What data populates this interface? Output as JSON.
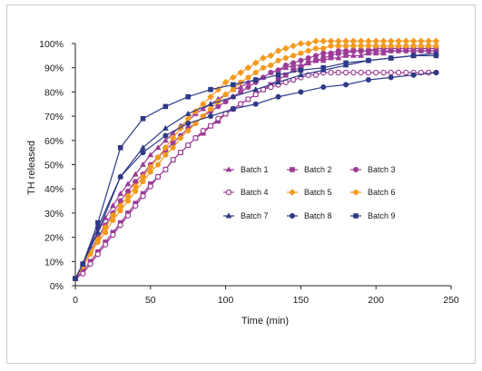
{
  "chart_data": {
    "type": "line",
    "title": "",
    "xlabel": "Time (min)",
    "ylabel": "TH released",
    "xlim": [
      0,
      250
    ],
    "ylim": [
      0,
      100
    ],
    "x_ticks": [
      "0",
      "50",
      "100",
      "150",
      "200",
      "250"
    ],
    "y_ticks": [
      "0%",
      "10%",
      "20%",
      "30%",
      "40%",
      "50%",
      "60%",
      "70%",
      "80%",
      "90%",
      "100%"
    ],
    "grid": false,
    "legend_position": "inside right",
    "series": [
      {
        "name": "Batch 1",
        "color": "#9b3c97",
        "marker": "triangle",
        "x": [
          0,
          5,
          10,
          15,
          20,
          25,
          30,
          35,
          40,
          45,
          50,
          55,
          60,
          65,
          70,
          75,
          80,
          85,
          90,
          95,
          100,
          105,
          110,
          115,
          120,
          125,
          130,
          135,
          140,
          145,
          150,
          155,
          160,
          165,
          170,
          175,
          180,
          185,
          190,
          195,
          200,
          205,
          210,
          215,
          220,
          225,
          230,
          235,
          240
        ],
        "y": [
          3,
          9,
          16,
          22,
          28,
          33,
          38,
          42,
          46,
          50,
          54,
          57,
          60,
          63,
          66,
          68,
          71,
          73,
          75,
          77,
          79,
          81,
          82,
          84,
          85,
          86,
          88,
          89,
          90,
          91,
          91,
          92,
          93,
          93,
          94,
          94,
          95,
          95,
          95,
          96,
          96,
          96,
          97,
          97,
          97,
          97,
          97,
          97,
          97
        ]
      },
      {
        "name": "Batch 2",
        "color": "#9b3c97",
        "marker": "square",
        "x": [
          0,
          5,
          10,
          15,
          20,
          25,
          30,
          35,
          40,
          45,
          50,
          55,
          60,
          65,
          70,
          75,
          80,
          85,
          90,
          95,
          100,
          105,
          110,
          115,
          120,
          125,
          130,
          135,
          140,
          145,
          150,
          155,
          160,
          165,
          170,
          175,
          180,
          185,
          190,
          195,
          200,
          205,
          210,
          215,
          220,
          225,
          230,
          235,
          240
        ],
        "y": [
          3,
          6,
          10,
          14,
          18,
          22,
          26,
          30,
          34,
          38,
          42,
          45,
          48,
          52,
          55,
          58,
          61,
          63,
          66,
          68,
          71,
          73,
          75,
          77,
          79,
          81,
          83,
          85,
          87,
          89,
          90,
          92,
          93,
          94,
          95,
          96,
          96,
          97,
          97,
          97,
          98,
          98,
          98,
          98,
          98,
          98,
          98,
          98,
          98
        ]
      },
      {
        "name": "Batch 3",
        "color": "#9b3c97",
        "marker": "circle",
        "x": [
          0,
          5,
          10,
          15,
          20,
          25,
          30,
          35,
          40,
          45,
          50,
          55,
          60,
          65,
          70,
          75,
          80,
          85,
          90,
          95,
          100,
          105,
          110,
          115,
          120,
          125,
          130,
          135,
          140,
          145,
          150,
          155,
          160,
          165,
          170,
          175,
          180,
          185,
          190,
          195,
          200,
          205,
          210,
          215,
          220,
          225,
          230,
          235,
          240
        ],
        "y": [
          3,
          8,
          14,
          20,
          25,
          30,
          35,
          39,
          43,
          46,
          50,
          53,
          56,
          59,
          62,
          65,
          67,
          70,
          72,
          74,
          76,
          78,
          80,
          82,
          84,
          86,
          88,
          89,
          91,
          92,
          93,
          94,
          95,
          96,
          96,
          97,
          97,
          97,
          97,
          97,
          97,
          97,
          97,
          97,
          97,
          97,
          97,
          97,
          97
        ]
      },
      {
        "name": "Batch 4",
        "color": "#9b3c97",
        "marker": "open-circle",
        "x": [
          0,
          5,
          10,
          15,
          20,
          25,
          30,
          35,
          40,
          45,
          50,
          55,
          60,
          65,
          70,
          75,
          80,
          85,
          90,
          95,
          100,
          105,
          110,
          115,
          120,
          125,
          130,
          135,
          140,
          145,
          150,
          155,
          160,
          165,
          170,
          175,
          180,
          185,
          190,
          195,
          200,
          205,
          210,
          215,
          220,
          225,
          230,
          235,
          240
        ],
        "y": [
          3,
          5,
          9,
          13,
          17,
          21,
          25,
          29,
          33,
          37,
          41,
          45,
          48,
          52,
          55,
          58,
          61,
          64,
          66,
          69,
          71,
          73,
          75,
          77,
          79,
          81,
          82,
          83,
          84,
          85,
          86,
          87,
          87,
          88,
          88,
          88,
          88,
          88,
          88,
          88,
          88,
          88,
          88,
          88,
          88,
          88,
          88,
          88,
          88
        ]
      },
      {
        "name": "Batch 5",
        "color": "#f39a1e",
        "marker": "diamond",
        "x": [
          0,
          5,
          10,
          15,
          20,
          25,
          30,
          35,
          40,
          45,
          50,
          55,
          60,
          65,
          70,
          75,
          80,
          85,
          90,
          95,
          100,
          105,
          110,
          115,
          120,
          125,
          130,
          135,
          140,
          145,
          150,
          155,
          160,
          165,
          170,
          175,
          180,
          185,
          190,
          195,
          200,
          205,
          210,
          215,
          220,
          225,
          230,
          235,
          240
        ],
        "y": [
          3,
          8,
          14,
          19,
          24,
          29,
          33,
          37,
          41,
          45,
          49,
          53,
          57,
          61,
          65,
          69,
          72,
          75,
          78,
          81,
          84,
          86,
          88,
          90,
          92,
          94,
          95,
          97,
          98,
          99,
          100,
          100,
          101,
          101,
          101,
          101,
          101,
          101,
          101,
          101,
          101,
          101,
          101,
          101,
          101,
          101,
          101,
          101,
          101
        ]
      },
      {
        "name": "Batch 6",
        "color": "#f39a1e",
        "marker": "circle",
        "x": [
          0,
          5,
          10,
          15,
          20,
          25,
          30,
          35,
          40,
          45,
          50,
          55,
          60,
          65,
          70,
          75,
          80,
          85,
          90,
          95,
          100,
          105,
          110,
          115,
          120,
          125,
          130,
          135,
          140,
          145,
          150,
          155,
          160,
          165,
          170,
          175,
          180,
          185,
          190,
          195,
          200,
          205,
          210,
          215,
          220,
          225,
          230,
          235,
          240
        ],
        "y": [
          3,
          8,
          13,
          18,
          22,
          27,
          31,
          35,
          39,
          43,
          47,
          50,
          54,
          57,
          61,
          64,
          67,
          70,
          73,
          76,
          79,
          81,
          84,
          86,
          88,
          90,
          91,
          93,
          94,
          95,
          96,
          97,
          98,
          98,
          99,
          99,
          99,
          99,
          99,
          99,
          99,
          99,
          99,
          99,
          99,
          99,
          99,
          99,
          99
        ]
      },
      {
        "name": "Batch 7",
        "color": "#2e3a87",
        "marker": "triangle",
        "x": [
          0,
          5,
          15,
          30,
          45,
          60,
          75,
          90,
          105,
          120,
          135,
          150,
          165,
          180,
          195,
          210,
          225,
          240
        ],
        "y": [
          3,
          9,
          22,
          45,
          57,
          65,
          71,
          75,
          78,
          81,
          84,
          87,
          89,
          91,
          93,
          94,
          95,
          96
        ]
      },
      {
        "name": "Batch 8",
        "color": "#2e3a87",
        "marker": "circle",
        "x": [
          0,
          5,
          15,
          30,
          45,
          60,
          75,
          90,
          105,
          120,
          135,
          150,
          165,
          180,
          195,
          210,
          225,
          240
        ],
        "y": [
          3,
          9,
          24,
          45,
          55,
          62,
          67,
          70,
          73,
          75,
          78,
          80,
          82,
          83,
          85,
          86,
          87,
          88
        ]
      },
      {
        "name": "Batch 9",
        "color": "#2e3a87",
        "marker": "square",
        "x": [
          0,
          5,
          15,
          30,
          45,
          60,
          75,
          90,
          105,
          120,
          135,
          150,
          165,
          180,
          195,
          210,
          225,
          240
        ],
        "y": [
          3,
          9,
          26,
          57,
          69,
          74,
          78,
          81,
          83,
          85,
          87,
          89,
          90,
          92,
          93,
          94,
          95,
          95
        ]
      }
    ]
  }
}
